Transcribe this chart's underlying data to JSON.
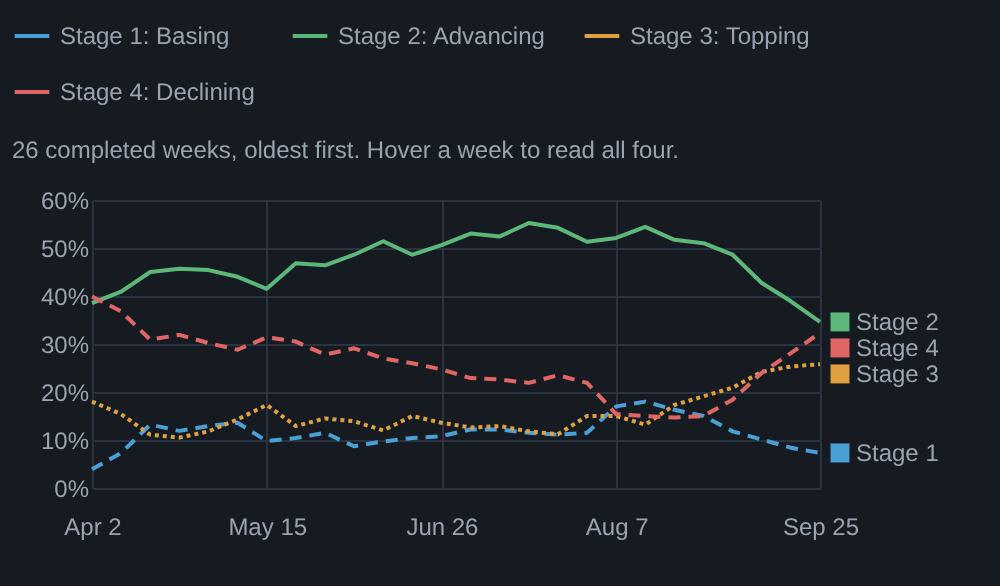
{
  "chart_data": {
    "type": "line",
    "subtitle": "26 completed weeks, oldest first. Hover a week to read all four.",
    "categories": [
      "Apr 2",
      null,
      null,
      null,
      null,
      null,
      "May 15",
      null,
      null,
      null,
      null,
      null,
      "Jun 26",
      null,
      null,
      null,
      null,
      null,
      "Aug 7",
      null,
      null,
      null,
      null,
      null,
      null,
      "Sep 25"
    ],
    "series": [
      {
        "name": "Stage 1: Basing",
        "color": "#4a9fd4",
        "line_style": "dashed",
        "values": [
          3.9,
          7.3,
          13.2,
          11.9,
          12.9,
          13.6,
          9.8,
          10.4,
          11.5,
          8.7,
          9.7,
          10.4,
          10.8,
          12.2,
          12.2,
          11.5,
          11.1,
          11.5,
          17,
          18,
          16.3,
          15,
          11.8,
          10.1,
          8.4,
          7.3
        ]
      },
      {
        "name": "Stage 2: Advancing",
        "color": "#5cb87a",
        "line_style": "solid",
        "values": [
          38.5,
          40.9,
          45,
          45.7,
          45.4,
          44,
          41.5,
          46.8,
          46.4,
          48.6,
          51.4,
          48.6,
          50.6,
          53,
          52.4,
          55.2,
          54.2,
          51.3,
          52.1,
          54.4,
          51.7,
          51,
          48.6,
          42.7,
          38.9,
          34.6
        ]
      },
      {
        "name": "Stage 3: Topping",
        "color": "#e0a040",
        "line_style": "dotted",
        "values": [
          18,
          15.4,
          11.1,
          10.5,
          11.8,
          14.3,
          17.3,
          12.9,
          14.5,
          13.9,
          12,
          15,
          13.6,
          12.6,
          12.9,
          11.8,
          11.2,
          15,
          15,
          13.2,
          17.3,
          19.1,
          20.9,
          24.2,
          25.3,
          25.8
        ]
      },
      {
        "name": "Stage 4: Declining",
        "color": "#e06666",
        "line_style": "dashed",
        "values": [
          39.9,
          36.8,
          30.9,
          31.9,
          30.2,
          28.8,
          31.4,
          30.5,
          27.8,
          29.1,
          27,
          26,
          24.7,
          22.9,
          22.6,
          21.9,
          23.5,
          21.9,
          15.4,
          15,
          14.7,
          15,
          18.4,
          24,
          28.1,
          32.3
        ]
      }
    ],
    "annotations": [
      {
        "text": "Stage 1",
        "x": "Sep 25",
        "y": 7.3
      },
      {
        "text": "Stage 2",
        "x": "Sep 25",
        "y": 34.6
      },
      {
        "text": "Stage 3",
        "x": "Sep 25",
        "y": 25.8
      },
      {
        "text": "Stage 4",
        "x": "Sep 25",
        "y": 32.3
      }
    ],
    "ylim": [
      0,
      60
    ],
    "yticks": [
      {
        "value": 0,
        "label": "0%"
      },
      {
        "value": 10,
        "label": "10%"
      },
      {
        "value": 20,
        "label": "20%"
      },
      {
        "value": 30,
        "label": "30%"
      },
      {
        "value": 40,
        "label": "40%"
      },
      {
        "value": 50,
        "label": "50%"
      },
      {
        "value": 60,
        "label": "60%"
      }
    ],
    "grid": true,
    "legend": "top left",
    "marker": "none"
  }
}
